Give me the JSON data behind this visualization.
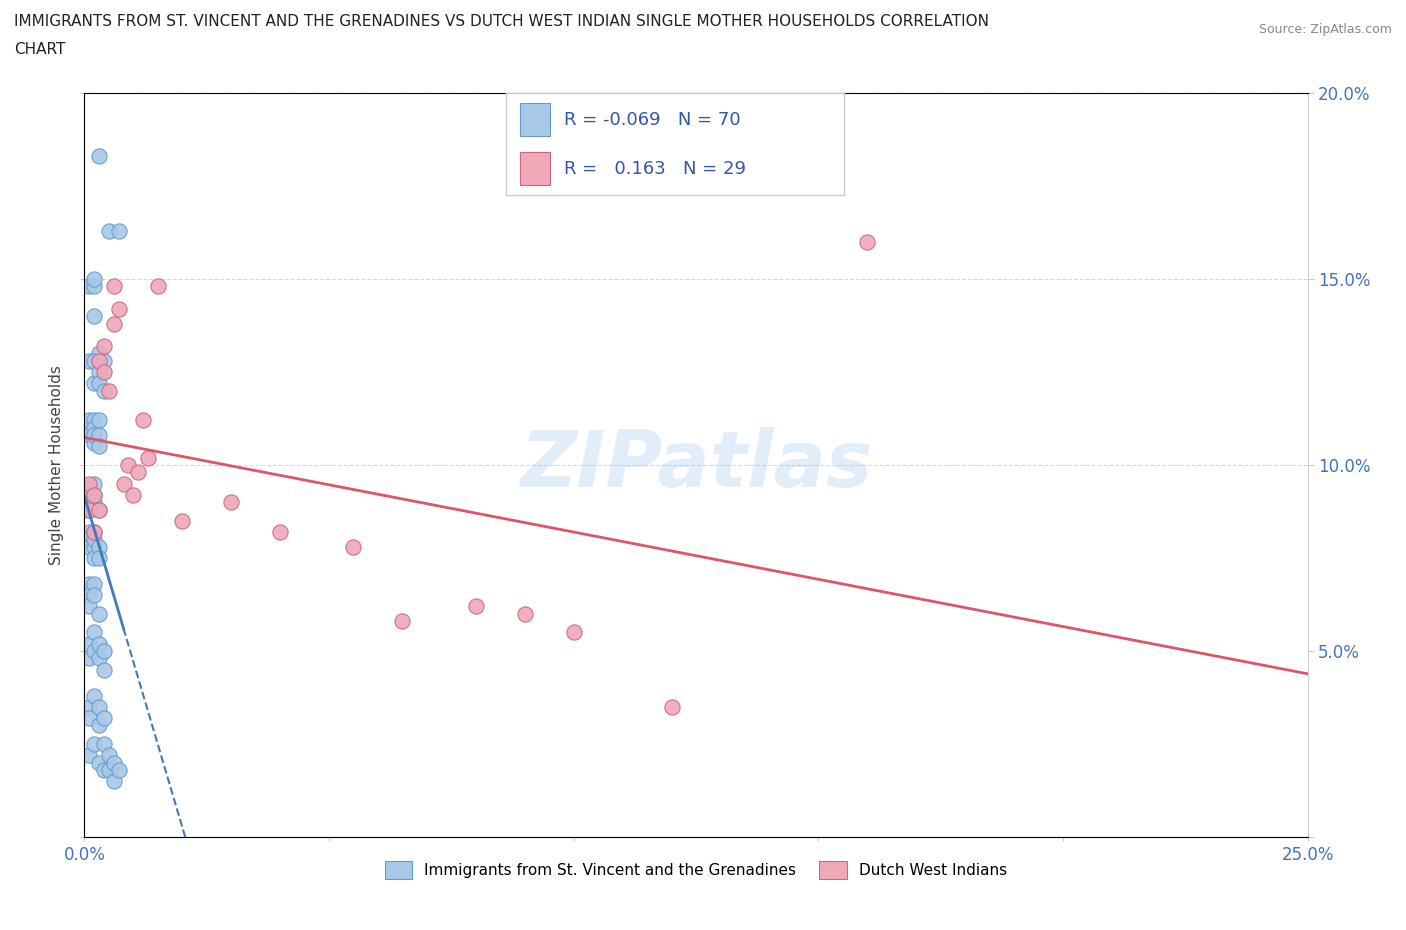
{
  "title_line1": "IMMIGRANTS FROM ST. VINCENT AND THE GRENADINES VS DUTCH WEST INDIAN SINGLE MOTHER HOUSEHOLDS CORRELATION",
  "title_line2": "CHART",
  "source": "Source: ZipAtlas.com",
  "ylabel": "Single Mother Households",
  "xlim": [
    0.0,
    0.25
  ],
  "ylim": [
    0.0,
    0.2
  ],
  "blue_color": "#A8C8E8",
  "blue_edge_color": "#6699CC",
  "pink_color": "#F0A8B8",
  "pink_edge_color": "#CC6680",
  "blue_line_color": "#4477BB",
  "pink_line_color": "#DD5566",
  "watermark": "ZIPatlas",
  "legend_R1": "-0.069",
  "legend_N1": "70",
  "legend_R2": "0.163",
  "legend_N2": "29",
  "series1_label": "Immigrants from St. Vincent and the Grenadines",
  "series2_label": "Dutch West Indians",
  "blue_x": [
    0.003,
    0.005,
    0.007,
    0.001,
    0.002,
    0.002,
    0.002,
    0.003,
    0.001,
    0.002,
    0.002,
    0.003,
    0.003,
    0.004,
    0.004,
    0.001,
    0.001,
    0.002,
    0.002,
    0.002,
    0.002,
    0.003,
    0.003,
    0.003,
    0.001,
    0.001,
    0.001,
    0.002,
    0.002,
    0.002,
    0.003,
    0.001,
    0.001,
    0.001,
    0.002,
    0.002,
    0.002,
    0.002,
    0.003,
    0.003,
    0.001,
    0.001,
    0.001,
    0.002,
    0.002,
    0.003,
    0.001,
    0.001,
    0.002,
    0.002,
    0.003,
    0.003,
    0.004,
    0.004,
    0.001,
    0.001,
    0.002,
    0.003,
    0.003,
    0.004,
    0.001,
    0.002,
    0.003,
    0.004,
    0.004,
    0.005,
    0.005,
    0.006,
    0.006,
    0.007
  ],
  "blue_y": [
    0.183,
    0.163,
    0.163,
    0.148,
    0.148,
    0.15,
    0.14,
    0.13,
    0.128,
    0.128,
    0.122,
    0.125,
    0.122,
    0.128,
    0.12,
    0.112,
    0.108,
    0.112,
    0.11,
    0.106,
    0.108,
    0.112,
    0.108,
    0.105,
    0.094,
    0.092,
    0.088,
    0.095,
    0.092,
    0.09,
    0.088,
    0.082,
    0.08,
    0.078,
    0.082,
    0.078,
    0.08,
    0.075,
    0.078,
    0.075,
    0.068,
    0.065,
    0.062,
    0.068,
    0.065,
    0.06,
    0.052,
    0.048,
    0.055,
    0.05,
    0.052,
    0.048,
    0.05,
    0.045,
    0.035,
    0.032,
    0.038,
    0.035,
    0.03,
    0.032,
    0.022,
    0.025,
    0.02,
    0.025,
    0.018,
    0.022,
    0.018,
    0.02,
    0.015,
    0.018
  ],
  "pink_x": [
    0.001,
    0.001,
    0.002,
    0.002,
    0.003,
    0.003,
    0.004,
    0.004,
    0.005,
    0.006,
    0.006,
    0.007,
    0.008,
    0.009,
    0.01,
    0.011,
    0.012,
    0.013,
    0.015,
    0.16,
    0.02,
    0.03,
    0.04,
    0.055,
    0.065,
    0.08,
    0.09,
    0.1,
    0.12
  ],
  "pink_y": [
    0.095,
    0.088,
    0.092,
    0.082,
    0.088,
    0.128,
    0.132,
    0.125,
    0.12,
    0.138,
    0.148,
    0.142,
    0.095,
    0.1,
    0.092,
    0.098,
    0.112,
    0.102,
    0.148,
    0.16,
    0.085,
    0.09,
    0.082,
    0.078,
    0.058,
    0.062,
    0.06,
    0.055,
    0.035
  ]
}
